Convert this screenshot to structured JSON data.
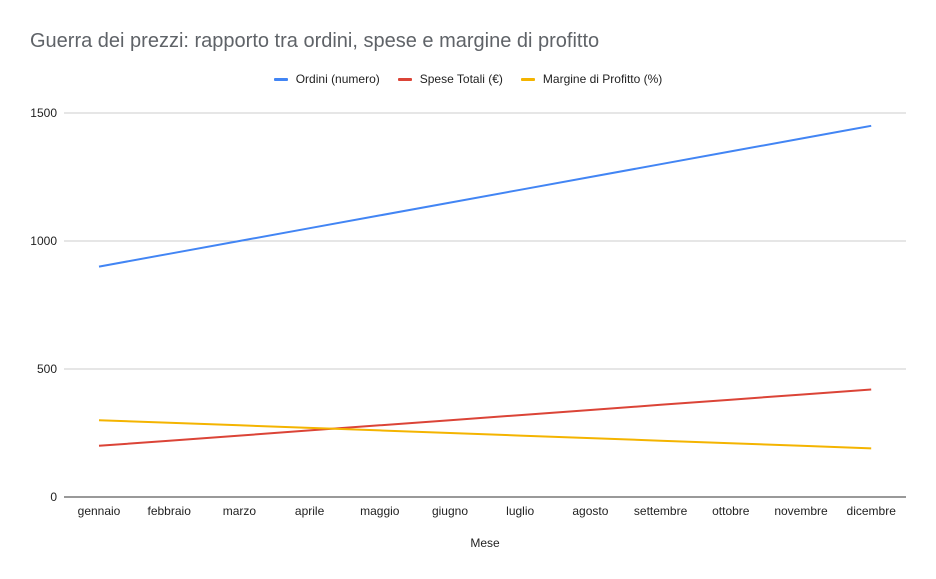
{
  "chart_data": {
    "type": "line",
    "title": "Guerra dei prezzi: rapporto tra ordini, spese e margine di profitto",
    "xlabel": "Mese",
    "ylabel": "",
    "categories": [
      "gennaio",
      "febbraio",
      "marzo",
      "aprile",
      "maggio",
      "giugno",
      "luglio",
      "agosto",
      "settembre",
      "ottobre",
      "novembre",
      "dicembre"
    ],
    "ylim": [
      0,
      1500
    ],
    "yticks": [
      0,
      500,
      1000,
      1500
    ],
    "grid": true,
    "legend_position": "top-center",
    "series": [
      {
        "name": "Ordini (numero)",
        "color": "#4285f4",
        "values": [
          900,
          950,
          1000,
          1050,
          1100,
          1150,
          1200,
          1250,
          1300,
          1350,
          1400,
          1450
        ]
      },
      {
        "name": "Spese Totali (€)",
        "color": "#db4437",
        "values": [
          200,
          220,
          240,
          260,
          280,
          300,
          320,
          340,
          360,
          380,
          400,
          420
        ]
      },
      {
        "name": "Margine di Profitto (%)",
        "color": "#f4b400",
        "values": [
          300,
          290,
          280,
          270,
          260,
          250,
          240,
          230,
          220,
          210,
          200,
          190
        ]
      }
    ]
  }
}
